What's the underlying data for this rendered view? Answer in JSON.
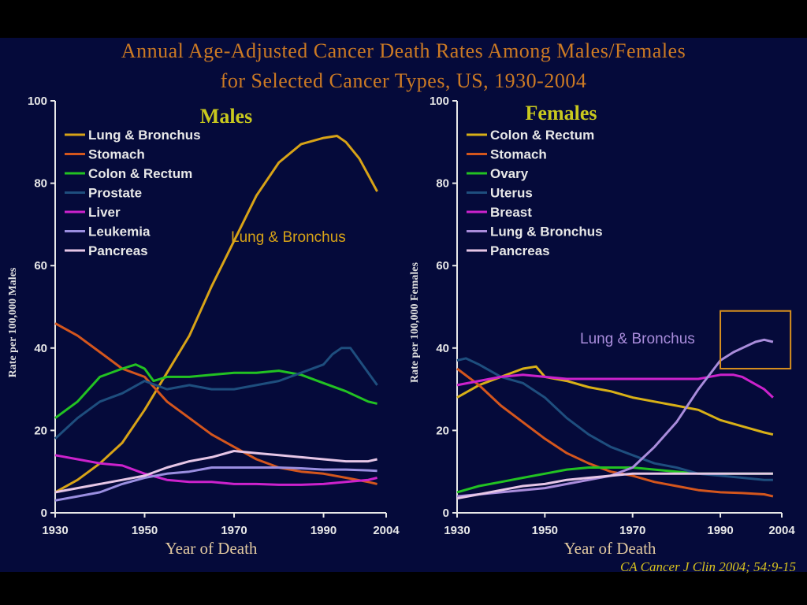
{
  "title_line1": "Annual Age-Adjusted Cancer Death Rates Among Males/Females",
  "title_line2": "for Selected Cancer Types, US, 1930-2004",
  "citation": "CA Cancer J Clin 2004; 54:9-15",
  "chart_data": [
    {
      "type": "line",
      "title": "Males",
      "xlabel": "Year of Death",
      "ylabel": "Rate per 100,000 Males",
      "xlim": [
        1930,
        2004
      ],
      "ylim": [
        0,
        100
      ],
      "xticks": [
        1930,
        1950,
        1970,
        1990,
        2004
      ],
      "yticks": [
        0,
        20,
        40,
        60,
        80,
        100
      ],
      "legend_position": "top-left",
      "annotations": [
        {
          "text": "Lung & Bronchus",
          "x": 1970,
          "y": 67,
          "color": "#d8a317"
        }
      ],
      "series": [
        {
          "name": "Lung & Bronchus",
          "color": "#d8a317",
          "x": [
            1930,
            1935,
            1940,
            1945,
            1950,
            1955,
            1960,
            1965,
            1970,
            1975,
            1980,
            1985,
            1990,
            1993,
            1995,
            1998,
            2000,
            2002
          ],
          "y": [
            5,
            8,
            12,
            17,
            25,
            34,
            43,
            55,
            66,
            77,
            85,
            89.5,
            91,
            91.5,
            90,
            86,
            82,
            78
          ]
        },
        {
          "name": "Stomach",
          "color": "#d4561d",
          "x": [
            1930,
            1935,
            1940,
            1945,
            1950,
            1955,
            1960,
            1965,
            1970,
            1975,
            1980,
            1985,
            1990,
            1995,
            2000,
            2002
          ],
          "y": [
            46,
            43,
            39,
            35,
            33,
            27,
            23,
            19,
            16,
            13,
            11,
            10,
            9.5,
            8.5,
            7.5,
            7
          ]
        },
        {
          "name": "Colon & Rectum",
          "color": "#22c222",
          "x": [
            1930,
            1935,
            1940,
            1945,
            1948,
            1950,
            1952,
            1955,
            1960,
            1965,
            1970,
            1975,
            1980,
            1985,
            1990,
            1995,
            2000,
            2002
          ],
          "y": [
            23,
            27,
            33,
            35,
            36,
            35,
            32,
            33,
            33,
            33.5,
            34,
            34,
            34.5,
            33.5,
            31.5,
            29.5,
            27,
            26.5
          ]
        },
        {
          "name": "Prostate",
          "color": "#1e4e7e",
          "x": [
            1930,
            1935,
            1940,
            1945,
            1950,
            1955,
            1960,
            1965,
            1970,
            1975,
            1980,
            1985,
            1990,
            1992,
            1994,
            1996,
            2000,
            2002
          ],
          "y": [
            18,
            23,
            27,
            29,
            32,
            30,
            31,
            30,
            30,
            31,
            32,
            34,
            36,
            38.5,
            40,
            40,
            34,
            31
          ]
        },
        {
          "name": "Liver",
          "color": "#cc22cc",
          "x": [
            1930,
            1935,
            1940,
            1945,
            1950,
            1955,
            1960,
            1965,
            1970,
            1975,
            1980,
            1985,
            1990,
            1995,
            2000,
            2002
          ],
          "y": [
            14,
            13,
            12,
            11.5,
            9.5,
            8,
            7.5,
            7.5,
            7,
            7,
            6.8,
            6.8,
            7,
            7.5,
            8,
            8.5
          ]
        },
        {
          "name": "Leukemia",
          "color": "#9a8ee0",
          "x": [
            1930,
            1935,
            1940,
            1945,
            1950,
            1955,
            1960,
            1965,
            1970,
            1975,
            1980,
            1985,
            1990,
            1995,
            2000,
            2002
          ],
          "y": [
            3,
            4,
            5,
            7,
            8.5,
            9.5,
            10,
            11,
            11,
            11,
            11,
            10.8,
            10.5,
            10.5,
            10.3,
            10.2
          ]
        },
        {
          "name": "Pancreas",
          "color": "#e6c6e6",
          "x": [
            1930,
            1935,
            1940,
            1945,
            1950,
            1955,
            1960,
            1965,
            1970,
            1975,
            1980,
            1985,
            1990,
            1995,
            2000,
            2002
          ],
          "y": [
            5,
            6,
            7,
            8,
            9,
            11,
            12.5,
            13.5,
            15,
            14.5,
            14,
            13.5,
            13,
            12.5,
            12.5,
            13
          ]
        }
      ]
    },
    {
      "type": "line",
      "title": "Females",
      "xlabel": "Year of Death",
      "ylabel": "Rate per 100,000 Females",
      "xlim": [
        1930,
        2004
      ],
      "ylim": [
        0,
        100
      ],
      "xticks": [
        1930,
        1950,
        1970,
        1990,
        2004
      ],
      "yticks": [
        0,
        20,
        40,
        60,
        80,
        100
      ],
      "legend_position": "top-left",
      "annotations": [
        {
          "text": "Lung & Bronchus",
          "x": 1958,
          "y": 42,
          "color": "#a98cdb"
        }
      ],
      "highlight_box": {
        "x": [
          1990,
          2006
        ],
        "y": [
          35,
          49
        ],
        "color": "#d8901e"
      },
      "series": [
        {
          "name": "Colon & Rectum",
          "color": "#d8b017",
          "x": [
            1930,
            1935,
            1940,
            1945,
            1948,
            1950,
            1955,
            1960,
            1965,
            1970,
            1975,
            1980,
            1985,
            1990,
            1995,
            2000,
            2002
          ],
          "y": [
            28,
            31,
            33,
            35,
            35.5,
            33,
            32,
            30.5,
            29.5,
            28,
            27,
            26,
            25,
            22.5,
            21,
            19.5,
            19
          ]
        },
        {
          "name": "Stomach",
          "color": "#d4561d",
          "x": [
            1930,
            1935,
            1940,
            1945,
            1950,
            1955,
            1960,
            1965,
            1970,
            1975,
            1980,
            1985,
            1990,
            1995,
            2000,
            2002
          ],
          "y": [
            35,
            31,
            26,
            22,
            18,
            14.5,
            12,
            10,
            9,
            7.5,
            6.5,
            5.5,
            5,
            4.8,
            4.5,
            4
          ]
        },
        {
          "name": "Ovary",
          "color": "#22c222",
          "x": [
            1930,
            1935,
            1940,
            1945,
            1950,
            1955,
            1960,
            1965,
            1970,
            1975,
            1980,
            1985,
            1990,
            1995,
            2000,
            2002
          ],
          "y": [
            5,
            6.5,
            7.5,
            8.5,
            9.5,
            10.5,
            11,
            11,
            11,
            10.5,
            10,
            9.5,
            9.5,
            9.5,
            9.5,
            9.5
          ]
        },
        {
          "name": "Uterus",
          "color": "#1e4e7e",
          "x": [
            1930,
            1932,
            1935,
            1940,
            1945,
            1950,
            1955,
            1960,
            1965,
            1970,
            1975,
            1980,
            1985,
            1990,
            1995,
            2000,
            2002
          ],
          "y": [
            37,
            37.5,
            36,
            33,
            31.5,
            28,
            23,
            19,
            16,
            14,
            12,
            11,
            9.5,
            9,
            8.5,
            8,
            8
          ]
        },
        {
          "name": "Breast",
          "color": "#cc22cc",
          "x": [
            1930,
            1935,
            1940,
            1945,
            1950,
            1955,
            1960,
            1965,
            1970,
            1975,
            1980,
            1985,
            1990,
            1993,
            1995,
            2000,
            2002
          ],
          "y": [
            31,
            32,
            33,
            33.5,
            33,
            32.5,
            32.5,
            32.5,
            32.5,
            32.5,
            32.5,
            32.5,
            33.5,
            33.5,
            33,
            30,
            28
          ]
        },
        {
          "name": "Lung & Bronchus",
          "color": "#a98cdb",
          "x": [
            1930,
            1935,
            1940,
            1945,
            1950,
            1955,
            1960,
            1965,
            1970,
            1975,
            1980,
            1985,
            1990,
            1993,
            1995,
            1998,
            2000,
            2002
          ],
          "y": [
            4,
            4.5,
            5,
            5.5,
            6,
            7,
            8,
            9,
            11,
            16,
            22,
            30,
            37,
            39,
            40,
            41.5,
            42,
            41.5
          ]
        },
        {
          "name": "Pancreas",
          "color": "#e6c6e6",
          "x": [
            1930,
            1935,
            1940,
            1945,
            1950,
            1955,
            1960,
            1965,
            1970,
            1975,
            1980,
            1985,
            1990,
            1995,
            2000,
            2002
          ],
          "y": [
            3.5,
            4.5,
            5.5,
            6.5,
            7,
            8,
            8.5,
            9,
            9.5,
            9.5,
            9.5,
            9.5,
            9.5,
            9.5,
            9.5,
            9.5
          ]
        }
      ]
    }
  ]
}
